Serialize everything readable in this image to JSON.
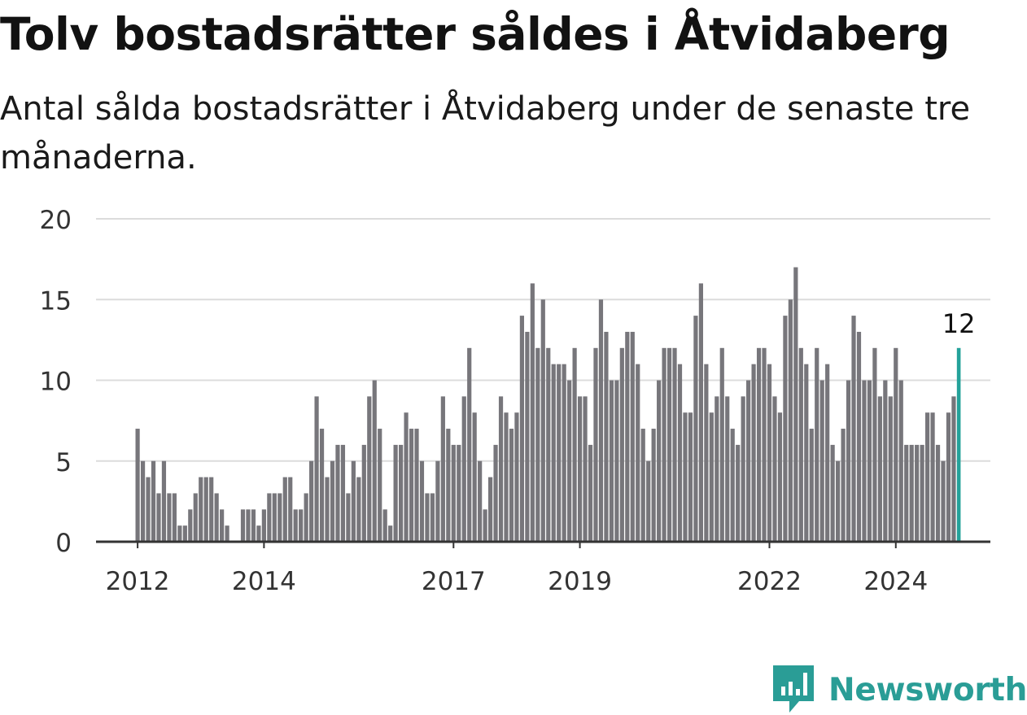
{
  "header": {
    "title": "Tolv bostadsrätter såldes i Åtvidaberg",
    "subtitle": "Antal sålda bostadsrätter i Åtvidaberg under de senaste tre månaderna."
  },
  "brand": {
    "name": "Newsworthy",
    "color": "#2a9d96",
    "icon": "newsworthy-logo-icon"
  },
  "chart_data": {
    "type": "bar",
    "title": "Tolv bostadsrätter såldes i Åtvidaberg",
    "subtitle": "Antal sålda bostadsrätter i Åtvidaberg under de senaste tre månaderna.",
    "xlabel": "",
    "ylabel": "",
    "ylim": [
      0,
      20
    ],
    "yticks": [
      0,
      5,
      10,
      15,
      20
    ],
    "x_start": "2012-01",
    "xticks": [
      "2012",
      "2014",
      "2017",
      "2019",
      "2022",
      "2024"
    ],
    "grid": true,
    "bar_color": "#77767b",
    "highlight_color": "#24a29a",
    "highlight_label": "12",
    "values": [
      7,
      5,
      4,
      5,
      3,
      5,
      3,
      3,
      1,
      1,
      2,
      3,
      4,
      4,
      4,
      3,
      2,
      1,
      0,
      0,
      2,
      2,
      2,
      1,
      2,
      3,
      3,
      3,
      4,
      4,
      2,
      2,
      3,
      5,
      9,
      7,
      4,
      5,
      6,
      6,
      3,
      5,
      4,
      6,
      9,
      10,
      7,
      2,
      1,
      6,
      6,
      8,
      7,
      7,
      5,
      3,
      3,
      5,
      9,
      7,
      6,
      6,
      9,
      12,
      8,
      5,
      2,
      4,
      6,
      9,
      8,
      7,
      8,
      14,
      13,
      16,
      12,
      15,
      12,
      11,
      11,
      11,
      10,
      12,
      9,
      9,
      6,
      12,
      15,
      13,
      10,
      10,
      12,
      13,
      13,
      11,
      7,
      5,
      7,
      10,
      12,
      12,
      12,
      11,
      8,
      8,
      14,
      16,
      11,
      8,
      9,
      12,
      9,
      7,
      6,
      9,
      10,
      11,
      12,
      12,
      11,
      9,
      8,
      14,
      15,
      17,
      12,
      11,
      7,
      12,
      10,
      11,
      6,
      5,
      7,
      10,
      14,
      13,
      10,
      10,
      12,
      9,
      10,
      9,
      12,
      10,
      6,
      6,
      6,
      6,
      8,
      8,
      6,
      5,
      8,
      9,
      12
    ]
  }
}
